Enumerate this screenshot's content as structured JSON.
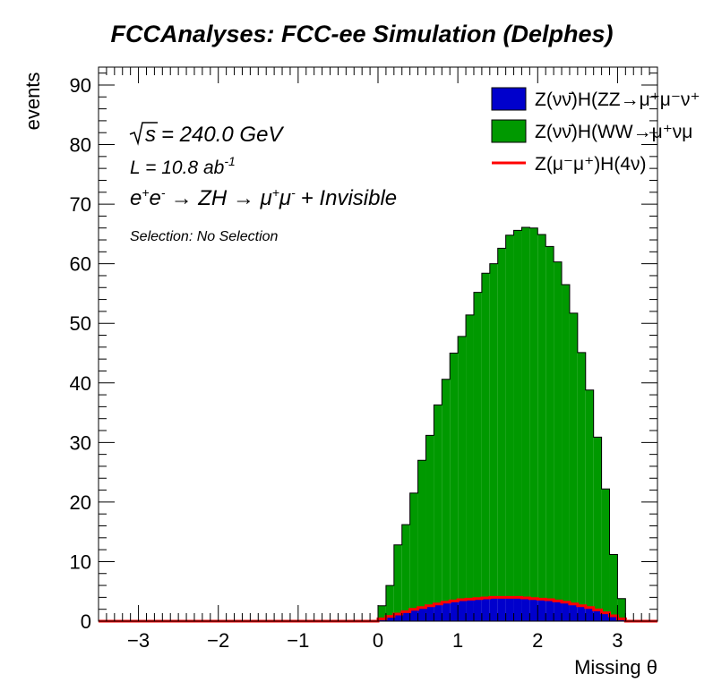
{
  "chart_data": {
    "type": "area",
    "title": "FCCAnalyses: FCC-ee Simulation (Delphes)",
    "xlabel": "Missing θ",
    "ylabel": "events",
    "xlim": [
      -3.5,
      3.5
    ],
    "ylim": [
      0,
      93
    ],
    "x_ticks": [
      "−3",
      "−2",
      "−1",
      "0",
      "1",
      "2",
      "3"
    ],
    "y_ticks": [
      "0",
      "10",
      "20",
      "30",
      "40",
      "50",
      "60",
      "70",
      "80",
      "90"
    ],
    "annotations": {
      "sqrt_s_symbol": "s",
      "energy": "= 240.0 GeV",
      "lumi": "L = 10.8 ab",
      "lumi_exp": "-1",
      "process_a": "e",
      "process_b": "e",
      "process_c": "→ ZH → μ",
      "process_d": "μ",
      "process_e": "+ Invisible",
      "selection": "Selection: No Selection"
    },
    "legend_position": "top-right",
    "bin_edges": [
      0.0,
      0.1,
      0.2,
      0.3,
      0.4,
      0.5,
      0.6,
      0.7,
      0.8,
      0.9,
      1.0,
      1.1,
      1.2,
      1.3,
      1.4,
      1.5,
      1.6,
      1.7,
      1.8,
      1.9,
      2.0,
      2.1,
      2.2,
      2.3,
      2.4,
      2.5,
      2.6,
      2.7,
      2.8,
      2.9,
      3.0,
      3.1
    ],
    "series": [
      {
        "name": "Z(νν̄)H(ZZ→μ⁺μ⁻ν⁺",
        "kind": "stacked-fill",
        "color": "#0000cc",
        "values": [
          0.4,
          0.8,
          1.2,
          1.6,
          2.0,
          2.3,
          2.6,
          2.9,
          3.2,
          3.4,
          3.6,
          3.7,
          3.8,
          3.9,
          4.0,
          4.0,
          4.0,
          4.0,
          3.9,
          3.8,
          3.7,
          3.6,
          3.4,
          3.2,
          2.9,
          2.6,
          2.3,
          1.9,
          1.4,
          0.9,
          0.4
        ]
      },
      {
        "name": "Z(νν̄)H(WW→μ⁺νμ",
        "kind": "stacked-fill",
        "color": "#009900",
        "values": [
          2.2,
          5.2,
          11.6,
          14.6,
          19.5,
          24.7,
          28.6,
          33.4,
          37.4,
          41.6,
          44.2,
          47.7,
          51.4,
          54.5,
          56.0,
          58.6,
          60.8,
          61.6,
          62.2,
          62.2,
          61.2,
          59.3,
          56.9,
          53.3,
          48.8,
          42.5,
          36.5,
          29.0,
          20.8,
          10.3,
          3.4
        ]
      },
      {
        "name": "Z(μ⁻μ⁺)H(4ν)",
        "kind": "line",
        "color": "#ff0000",
        "values": [
          0.4,
          0.8,
          1.2,
          1.6,
          2.0,
          2.3,
          2.6,
          2.9,
          3.2,
          3.4,
          3.6,
          3.7,
          3.8,
          3.9,
          4.0,
          4.0,
          4.0,
          4.0,
          3.9,
          3.8,
          3.7,
          3.6,
          3.4,
          3.2,
          2.9,
          2.6,
          2.3,
          1.9,
          1.4,
          0.9,
          0.4
        ]
      }
    ]
  }
}
